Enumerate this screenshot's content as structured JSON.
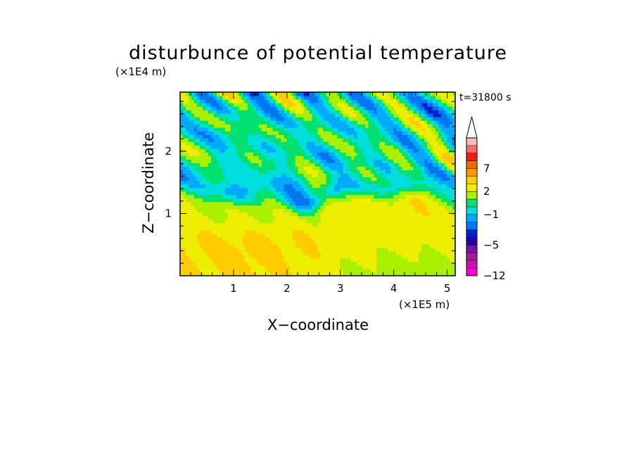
{
  "chart_data": {
    "type": "heatmap",
    "title": "disturbunce of potential temperature",
    "time_label": "t=31800 s",
    "xlabel": "X−coordinate",
    "ylabel": "Z−coordinate",
    "x_unit": "(×1E5 m)",
    "y_unit": "(×1E4 m)",
    "xlim": [
      0,
      5.15
    ],
    "ylim": [
      0,
      2.95
    ],
    "x_ticks": [
      1,
      2,
      3,
      4,
      5
    ],
    "y_ticks": [
      1,
      2
    ],
    "colorbar": {
      "levels": [
        -12,
        -11,
        -9,
        -7,
        -5,
        -4,
        -3,
        -2,
        -1,
        0,
        1,
        2,
        3,
        5,
        7,
        8,
        9,
        11
      ],
      "tick_labels": [
        "−12",
        "−5",
        "−1",
        "2",
        "7"
      ],
      "tick_values": [
        -12,
        -5,
        -1,
        2,
        7
      ],
      "colors": [
        "#ff00cc",
        "#cc11aa",
        "#992299",
        "#7711aa",
        "#2200aa",
        "#0022cc",
        "#0077ee",
        "#00aaff",
        "#00dddd",
        "#00e070",
        "#aaee00",
        "#eeee00",
        "#ffcc00",
        "#ff9900",
        "#ff6600",
        "#ee2200",
        "#ff6666",
        "#ffbbbb"
      ],
      "extend": "max"
    },
    "notes": "2-D field of potential temperature disturbance; negative/positive wave cells in upper layer (z>1.4), weak positive values (1–3) in lower layer."
  }
}
